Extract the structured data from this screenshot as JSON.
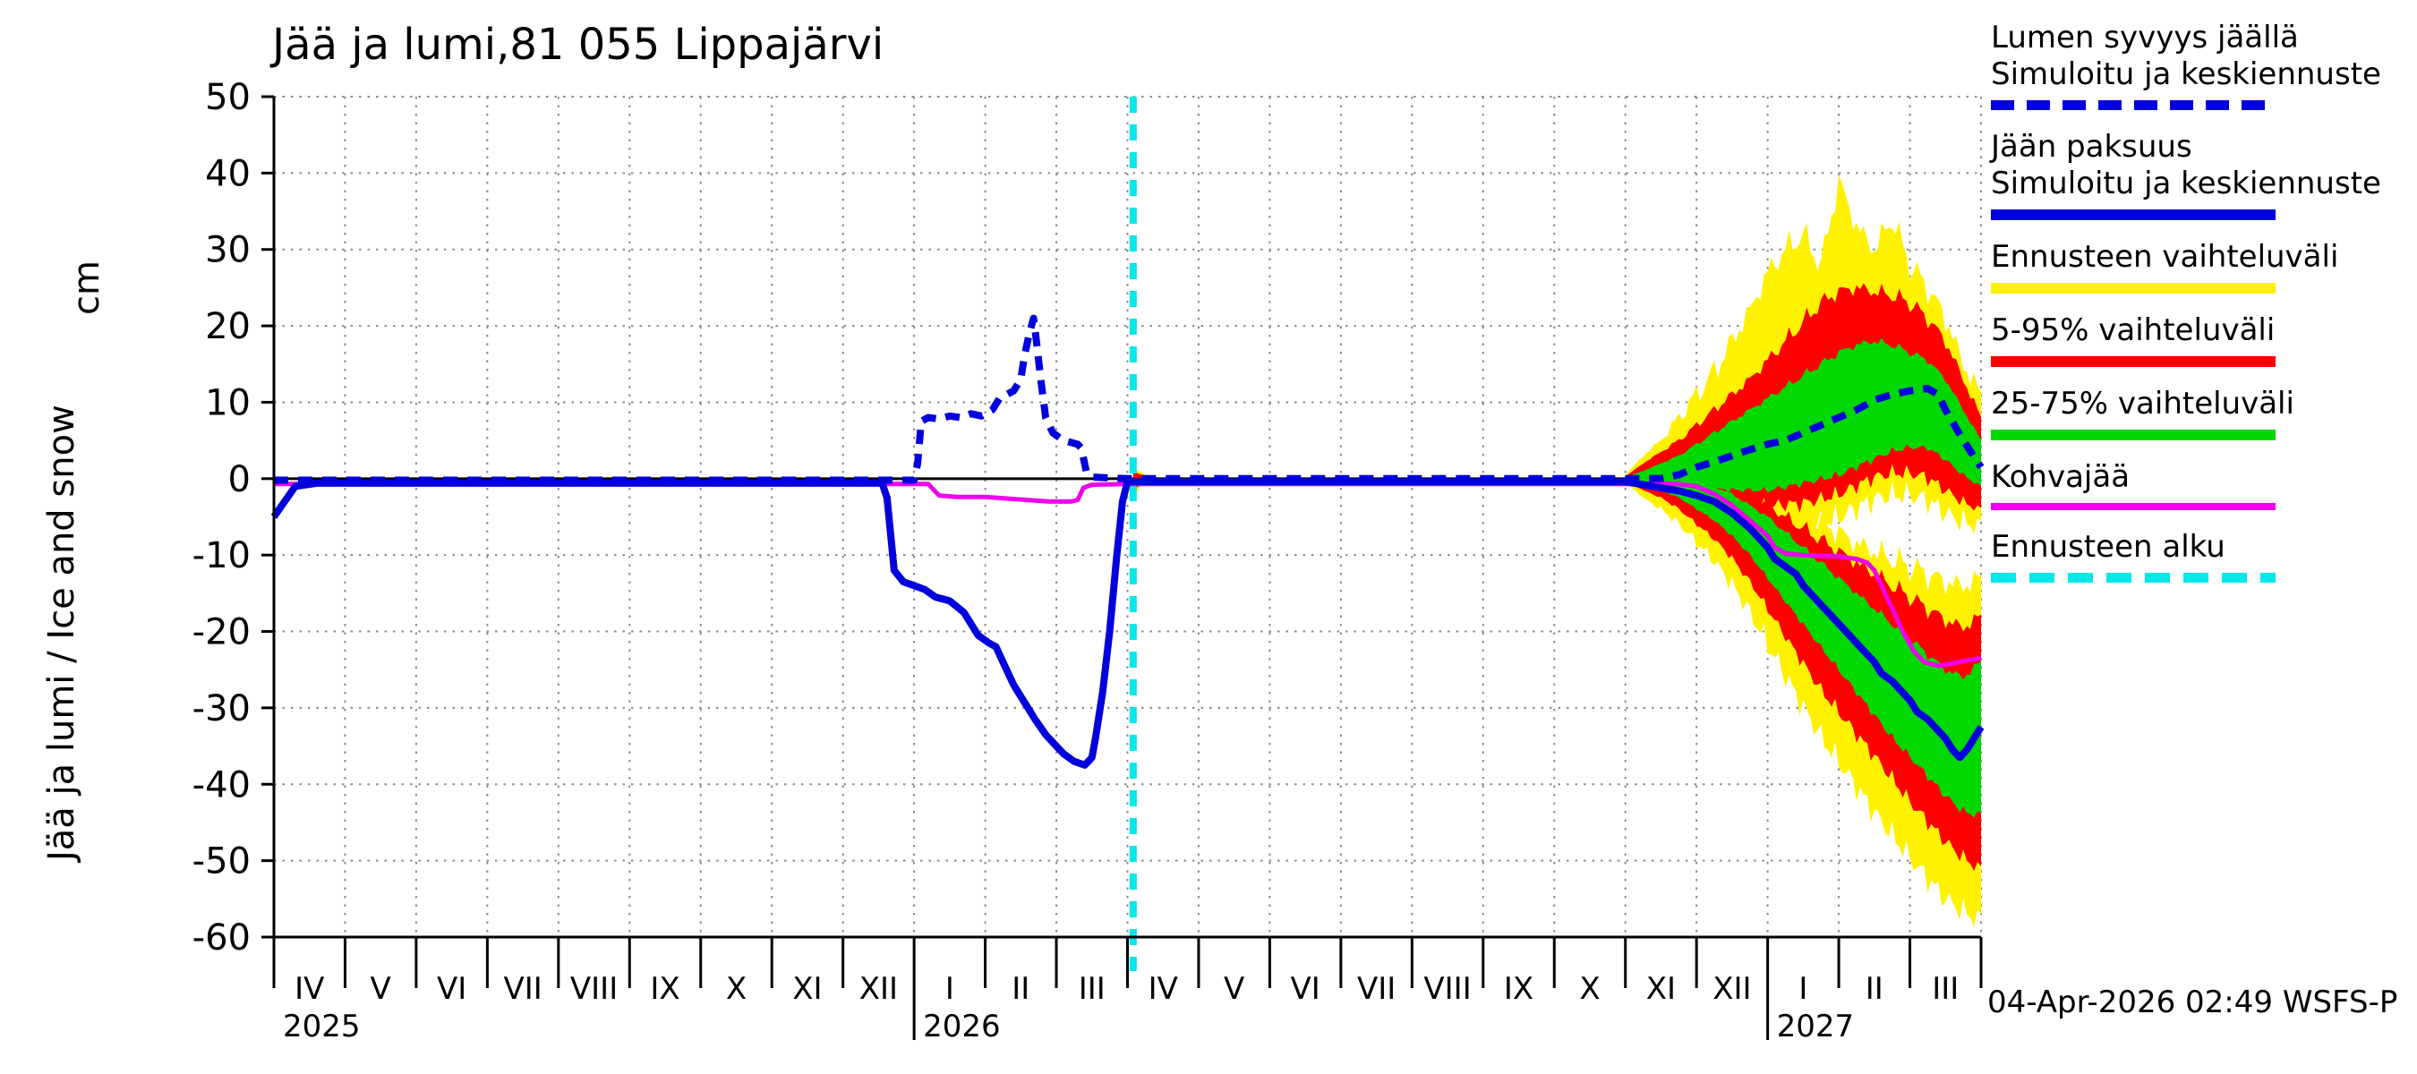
{
  "page": {
    "title": "Jää ja lumi,81 055 Lippajärvi",
    "timestamp": "04-Apr-2026 02:49 WSFS-P"
  },
  "axis": {
    "y_label": "Jää ja lumi / Ice and snow",
    "y_unit": "cm"
  },
  "legend": {
    "items": [
      {
        "line1": "Lumen syvyys jäällä",
        "line2": "Simuloitu ja keskiennuste",
        "swatch": "blue-dash"
      },
      {
        "line1": "Jään paksuus",
        "line2": "Simuloitu ja keskiennuste",
        "swatch": "blue-solid"
      },
      {
        "line1": "Ennusteen vaihteluväli",
        "swatch": "yellow"
      },
      {
        "line1": "5-95% vaihteluväli",
        "swatch": "red"
      },
      {
        "line1": "25-75% vaihteluväli",
        "swatch": "green"
      },
      {
        "line1": "Kohvajää",
        "swatch": "magenta"
      },
      {
        "line1": "Ennusteen alku",
        "swatch": "cyan-dash"
      }
    ]
  },
  "chart_data": {
    "type": "line",
    "title": "Jää ja lumi,81 055 Lippajärvi",
    "ylabel": "Jää ja lumi / Ice and snow",
    "y_unit": "cm",
    "ylim": [
      -60,
      50
    ],
    "ytick_step": 10,
    "yticks": [
      50,
      40,
      30,
      20,
      10,
      0,
      -10,
      -20,
      -30,
      -40,
      -50,
      -60
    ],
    "months": 24,
    "month_labels": [
      "IV",
      "V",
      "VI",
      "VII",
      "VIII",
      "IX",
      "X",
      "XI",
      "XII",
      "I",
      "II",
      "III",
      "IV",
      "V",
      "VI",
      "VII",
      "VIII",
      "IX",
      "X",
      "XI",
      "XII",
      "I",
      "II",
      "III"
    ],
    "year_labels": [
      {
        "label": "2025",
        "month_index": 0
      },
      {
        "label": "2026",
        "month_index": 9
      },
      {
        "label": "2027",
        "month_index": 21
      }
    ],
    "long_tick_indices": [
      9,
      21
    ],
    "forecast_start_x": 12.08,
    "grid": true,
    "legend_position": "right",
    "colors": {
      "blue": "#0000dd",
      "yellow": "#fff200",
      "red": "#ff0000",
      "green": "#00d800",
      "magenta": "#ee00ee",
      "cyan": "#00e8e8",
      "grid": "#8a8a8a",
      "axis": "#000000"
    },
    "series": [
      {
        "id": "kohvajaa",
        "label": "Kohvajää",
        "color_key": "magenta",
        "width": 5,
        "dash": null,
        "points": [
          [
            0,
            -0.7
          ],
          [
            9.2,
            -0.7
          ],
          [
            9.35,
            -2.2
          ],
          [
            9.6,
            -2.4
          ],
          [
            10.0,
            -2.4
          ],
          [
            10.3,
            -2.6
          ],
          [
            10.6,
            -2.8
          ],
          [
            10.9,
            -3
          ],
          [
            11.2,
            -3
          ],
          [
            11.3,
            -2.8
          ],
          [
            11.38,
            -1.2
          ],
          [
            11.5,
            -0.8
          ],
          [
            12.0,
            -0.7
          ],
          [
            19.75,
            -0.7
          ],
          [
            20.0,
            -1
          ],
          [
            20.25,
            -2
          ],
          [
            20.5,
            -3.5
          ],
          [
            20.75,
            -5.5
          ],
          [
            21.0,
            -7.5
          ],
          [
            21.1,
            -9
          ],
          [
            21.25,
            -9.8
          ],
          [
            21.5,
            -10
          ],
          [
            22.0,
            -10.2
          ],
          [
            22.25,
            -10.5
          ],
          [
            22.4,
            -11
          ],
          [
            22.5,
            -12
          ],
          [
            22.6,
            -14
          ],
          [
            22.75,
            -17
          ],
          [
            22.9,
            -20
          ],
          [
            23.05,
            -22.5
          ],
          [
            23.2,
            -24
          ],
          [
            23.4,
            -24.5
          ],
          [
            23.6,
            -24.2
          ],
          [
            23.8,
            -23.8
          ],
          [
            24.0,
            -23.5
          ]
        ]
      },
      {
        "id": "ice-thickness",
        "label": "Jään paksuus",
        "color_key": "blue",
        "width": 8,
        "dash": null,
        "points": [
          [
            0,
            -5
          ],
          [
            0.15,
            -3
          ],
          [
            0.3,
            -1
          ],
          [
            0.6,
            -0.6
          ],
          [
            8.55,
            -0.6
          ],
          [
            8.62,
            -2.5
          ],
          [
            8.72,
            -12
          ],
          [
            8.85,
            -13.5
          ],
          [
            9.0,
            -14
          ],
          [
            9.15,
            -14.5
          ],
          [
            9.3,
            -15.5
          ],
          [
            9.5,
            -16
          ],
          [
            9.7,
            -17.5
          ],
          [
            9.8,
            -19
          ],
          [
            9.9,
            -20.5
          ],
          [
            10.05,
            -21.5
          ],
          [
            10.15,
            -22
          ],
          [
            10.25,
            -24
          ],
          [
            10.4,
            -27
          ],
          [
            10.5,
            -28.5
          ],
          [
            10.6,
            -30
          ],
          [
            10.7,
            -31.5
          ],
          [
            10.85,
            -33.5
          ],
          [
            11.0,
            -35
          ],
          [
            11.1,
            -36
          ],
          [
            11.25,
            -37
          ],
          [
            11.4,
            -37.5
          ],
          [
            11.5,
            -36.5
          ],
          [
            11.55,
            -34
          ],
          [
            11.65,
            -28
          ],
          [
            11.75,
            -20
          ],
          [
            11.85,
            -10
          ],
          [
            11.93,
            -3
          ],
          [
            12.0,
            -0.4
          ],
          [
            19.0,
            -0.4
          ],
          [
            19.25,
            -0.8
          ],
          [
            19.5,
            -1.2
          ],
          [
            19.75,
            -1.6
          ],
          [
            20.0,
            -2.2
          ],
          [
            20.25,
            -3
          ],
          [
            20.5,
            -4.5
          ],
          [
            20.75,
            -6.5
          ],
          [
            21.0,
            -9
          ],
          [
            21.1,
            -10.5
          ],
          [
            21.25,
            -11.5
          ],
          [
            21.4,
            -12.5
          ],
          [
            21.5,
            -14
          ],
          [
            21.75,
            -16.5
          ],
          [
            22.0,
            -19
          ],
          [
            22.1,
            -20
          ],
          [
            22.25,
            -21.5
          ],
          [
            22.5,
            -24
          ],
          [
            22.6,
            -25.5
          ],
          [
            22.75,
            -26.5
          ],
          [
            23.0,
            -29
          ],
          [
            23.1,
            -30.5
          ],
          [
            23.25,
            -31.5
          ],
          [
            23.4,
            -33
          ],
          [
            23.5,
            -34
          ],
          [
            23.6,
            -35.5
          ],
          [
            23.7,
            -36.5
          ],
          [
            23.8,
            -35.5
          ],
          [
            23.9,
            -34
          ],
          [
            24.0,
            -32.5
          ]
        ]
      },
      {
        "id": "snow-depth",
        "label": "Lumen syvyys jäällä",
        "color_key": "blue",
        "width": 8,
        "dash": "16 11",
        "points": [
          [
            0,
            -0.2
          ],
          [
            9.0,
            -0.2
          ],
          [
            9.05,
            2
          ],
          [
            9.1,
            7.5
          ],
          [
            9.2,
            8
          ],
          [
            9.35,
            7.8
          ],
          [
            9.5,
            8.2
          ],
          [
            9.65,
            8
          ],
          [
            9.8,
            8.5
          ],
          [
            9.95,
            8.2
          ],
          [
            10.1,
            9
          ],
          [
            10.2,
            10.5
          ],
          [
            10.3,
            11
          ],
          [
            10.4,
            11.5
          ],
          [
            10.5,
            13
          ],
          [
            10.55,
            16
          ],
          [
            10.62,
            19
          ],
          [
            10.68,
            21
          ],
          [
            10.72,
            18
          ],
          [
            10.78,
            13
          ],
          [
            10.85,
            8
          ],
          [
            10.95,
            6
          ],
          [
            11.1,
            5
          ],
          [
            11.3,
            4.5
          ],
          [
            11.35,
            4
          ],
          [
            11.42,
            1
          ],
          [
            11.5,
            0.2
          ],
          [
            12.0,
            0
          ],
          [
            19.5,
            0
          ],
          [
            19.75,
            0.5
          ],
          [
            20.0,
            1.5
          ],
          [
            20.25,
            2.2
          ],
          [
            20.5,
            3
          ],
          [
            20.75,
            3.8
          ],
          [
            21.0,
            4.5
          ],
          [
            21.25,
            5
          ],
          [
            21.5,
            6
          ],
          [
            21.75,
            7
          ],
          [
            22.0,
            8
          ],
          [
            22.25,
            9
          ],
          [
            22.5,
            10.3
          ],
          [
            22.75,
            11
          ],
          [
            23.0,
            11.5
          ],
          [
            23.25,
            11.8
          ],
          [
            23.4,
            11
          ],
          [
            23.5,
            9
          ],
          [
            23.75,
            5
          ],
          [
            24.0,
            1.5
          ]
        ]
      }
    ],
    "bands": [
      {
        "name": "blip-minmax",
        "color_key": "yellow",
        "x": [
          12.08,
          12.2,
          12.35
        ],
        "upper": [
          1.5,
          0.8,
          0
        ],
        "lower": [
          -2,
          -1,
          0
        ]
      },
      {
        "name": "snow-minmax",
        "color_key": "yellow",
        "x": [
          19,
          19.25,
          19.5,
          19.75,
          20,
          20.25,
          20.5,
          20.75,
          21,
          21.25,
          21.5,
          21.75,
          22,
          22.25,
          22.5,
          22.75,
          23,
          23.25,
          23.5,
          23.75,
          24
        ],
        "upper": [
          0.5,
          3,
          5,
          8,
          11,
          14,
          18,
          22,
          27,
          30,
          32,
          28,
          39,
          33,
          30,
          34,
          28,
          25,
          21,
          15,
          11
        ],
        "lower": [
          -0.5,
          -2,
          -3,
          -4,
          -5,
          -5.5,
          -6,
          -6.5,
          -7,
          -6.5,
          -6,
          -5.5,
          -5,
          -4,
          -3,
          -2.5,
          -2.5,
          -3,
          -4.5,
          -5.5,
          -6
        ]
      },
      {
        "name": "ice-minmax",
        "color_key": "yellow",
        "x": [
          19,
          19.25,
          19.5,
          19.75,
          20,
          20.25,
          20.5,
          20.75,
          21,
          21.25,
          21.5,
          21.75,
          22,
          22.25,
          22.5,
          22.75,
          23,
          23.25,
          23.5,
          23.75,
          24
        ],
        "upper": [
          0.3,
          1.5,
          2,
          1.8,
          1.5,
          1,
          0.3,
          -0.5,
          -1.5,
          -2.5,
          -4,
          -5.5,
          -7,
          -8.5,
          -9.5,
          -10.5,
          -11.5,
          -12.5,
          -13.5,
          -14,
          -13
        ],
        "lower": [
          -0.5,
          -2.5,
          -4,
          -6,
          -8.5,
          -11,
          -14,
          -17.5,
          -21.5,
          -25.5,
          -29.5,
          -33.5,
          -37,
          -40.5,
          -44,
          -47,
          -50,
          -52.5,
          -55,
          -56.5,
          -57.5
        ]
      },
      {
        "name": "blip-5-95",
        "color_key": "red",
        "x": [
          12.08,
          12.2,
          12.35
        ],
        "upper": [
          1,
          0.5,
          0
        ],
        "lower": [
          -1.5,
          -0.7,
          0
        ]
      },
      {
        "name": "snow-5-95",
        "color_key": "red",
        "x": [
          19,
          19.25,
          19.5,
          19.75,
          20,
          20.25,
          20.5,
          20.75,
          21,
          21.25,
          21.5,
          21.75,
          22,
          22.25,
          22.5,
          22.75,
          23,
          23.25,
          23.5,
          23.75,
          24
        ],
        "upper": [
          0.3,
          2,
          3.5,
          5,
          7,
          9,
          11,
          13,
          15.5,
          18,
          20.5,
          23,
          24.5,
          25,
          24.5,
          24,
          23,
          21,
          18,
          13,
          8
        ],
        "lower": [
          -0.3,
          -1,
          -1.5,
          -2,
          -2.5,
          -3,
          -3.2,
          -3.4,
          -3.5,
          -3.2,
          -3,
          -2.5,
          -2,
          -1,
          0,
          0.5,
          0.5,
          0,
          -1.5,
          -3,
          -4
        ]
      },
      {
        "name": "ice-5-95",
        "color_key": "red",
        "x": [
          19,
          19.25,
          19.5,
          19.75,
          20,
          20.25,
          20.5,
          20.75,
          21,
          21.25,
          21.5,
          21.75,
          22,
          22.25,
          22.5,
          22.75,
          23,
          23.25,
          23.5,
          23.75,
          24
        ],
        "upper": [
          0.2,
          0.8,
          1,
          0.8,
          0.5,
          0,
          -0.8,
          -2,
          -3.5,
          -5,
          -6.5,
          -8,
          -9.5,
          -11,
          -12.5,
          -14,
          -15.5,
          -17,
          -18.5,
          -19.5,
          -18
        ],
        "lower": [
          -0.3,
          -1.5,
          -2.5,
          -4,
          -6,
          -8,
          -10.5,
          -13.5,
          -17,
          -20.5,
          -24,
          -27.5,
          -30.5,
          -33.5,
          -36.5,
          -39.5,
          -42.5,
          -45,
          -47.5,
          -49.5,
          -51
        ]
      },
      {
        "name": "snow-25-75",
        "color_key": "green",
        "x": [
          19,
          19.25,
          19.5,
          19.75,
          20,
          20.25,
          20.5,
          20.75,
          21,
          21.25,
          21.5,
          21.75,
          22,
          22.25,
          22.5,
          22.75,
          23,
          23.25,
          23.5,
          23.75,
          24
        ],
        "upper": [
          0.2,
          1,
          2,
          3,
          4.5,
          6,
          7.5,
          9,
          10.5,
          12,
          13.5,
          15,
          16.5,
          17.5,
          18,
          17.5,
          16.5,
          15.5,
          13,
          9,
          5
        ],
        "lower": [
          -0.2,
          -0.5,
          -0.8,
          -1,
          -1.2,
          -1.4,
          -1.5,
          -1.5,
          -1.5,
          -1,
          -0.5,
          0,
          0.5,
          1.5,
          2.5,
          3.5,
          4,
          4,
          2.5,
          0.5,
          -1
        ]
      },
      {
        "name": "ice-25-75",
        "color_key": "green",
        "x": [
          19,
          19.25,
          19.5,
          19.75,
          20,
          20.25,
          20.5,
          20.75,
          21,
          21.25,
          21.5,
          21.75,
          22,
          22.25,
          22.5,
          22.75,
          23,
          23.25,
          23.5,
          23.75,
          24
        ],
        "upper": [
          0.1,
          0.3,
          0.5,
          0,
          -0.5,
          -1,
          -2,
          -3.5,
          -5,
          -7,
          -9,
          -11,
          -13,
          -15,
          -17,
          -19,
          -21,
          -23,
          -25,
          -26,
          -24
        ],
        "lower": [
          -0.2,
          -1,
          -1.5,
          -2.5,
          -4,
          -5.5,
          -7.5,
          -10,
          -13,
          -16,
          -19,
          -22,
          -25,
          -28,
          -31,
          -34,
          -36.5,
          -39,
          -41.5,
          -43.5,
          -44
        ]
      }
    ]
  }
}
